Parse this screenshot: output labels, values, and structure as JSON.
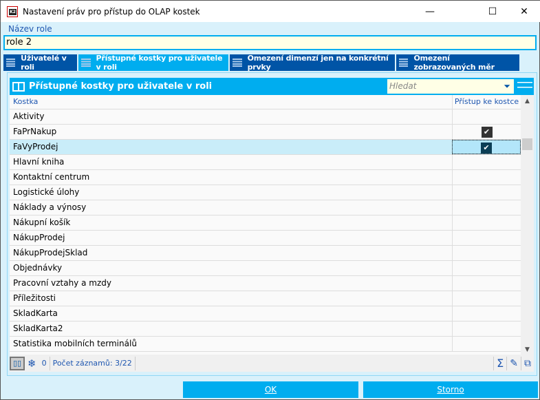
{
  "window": {
    "title": "Nastavení práv pro přístup do OLAP kostek",
    "minimize": "—",
    "maximize": "☐",
    "close": "✕"
  },
  "role": {
    "label": "Název role",
    "value": "role 2"
  },
  "tabs": [
    {
      "label": "Uživatelé v roli"
    },
    {
      "label": "Přístupné kostky pro uživatele v roli",
      "active": true
    },
    {
      "label": "Omezení dimenzí jen na konkrétní prvky"
    },
    {
      "label": "Omezení zobrazovaných měr"
    }
  ],
  "panel": {
    "title": "Přístupné kostky pro uživatele v roli",
    "search_placeholder": "Hledat",
    "filter_icon": "⏷"
  },
  "grid": {
    "columns": [
      "Kostka",
      "Přístup ke kostce"
    ],
    "rows": [
      {
        "name": "Aktivity",
        "access": false
      },
      {
        "name": "FaPrNakup",
        "access": true
      },
      {
        "name": "FaVyProdej",
        "access": true,
        "selected": true
      },
      {
        "name": "Hlavní kniha",
        "access": false
      },
      {
        "name": "Kontaktní centrum",
        "access": false
      },
      {
        "name": "Logistické úlohy",
        "access": false
      },
      {
        "name": "Náklady a výnosy",
        "access": false
      },
      {
        "name": "Nákupní košík",
        "access": false
      },
      {
        "name": "NákupProdej",
        "access": false
      },
      {
        "name": "NákupProdejSklad",
        "access": false
      },
      {
        "name": "Objednávky",
        "access": false
      },
      {
        "name": "Pracovní vztahy a mzdy",
        "access": false
      },
      {
        "name": "Příležitosti",
        "access": false
      },
      {
        "name": "SkladKarta",
        "access": false
      },
      {
        "name": "SkladKarta2",
        "access": false
      },
      {
        "name": "Statistika mobilních terminálů",
        "access": false
      }
    ]
  },
  "footer": {
    "frozen_count": "0",
    "records": "Počet záznamů: 3/22",
    "sum": "Σ"
  },
  "buttons": {
    "ok": "OK",
    "cancel": "Storno"
  },
  "colors": {
    "accent": "#00adef",
    "tab_dark": "#0054a6",
    "background": "#d9f1fb"
  }
}
